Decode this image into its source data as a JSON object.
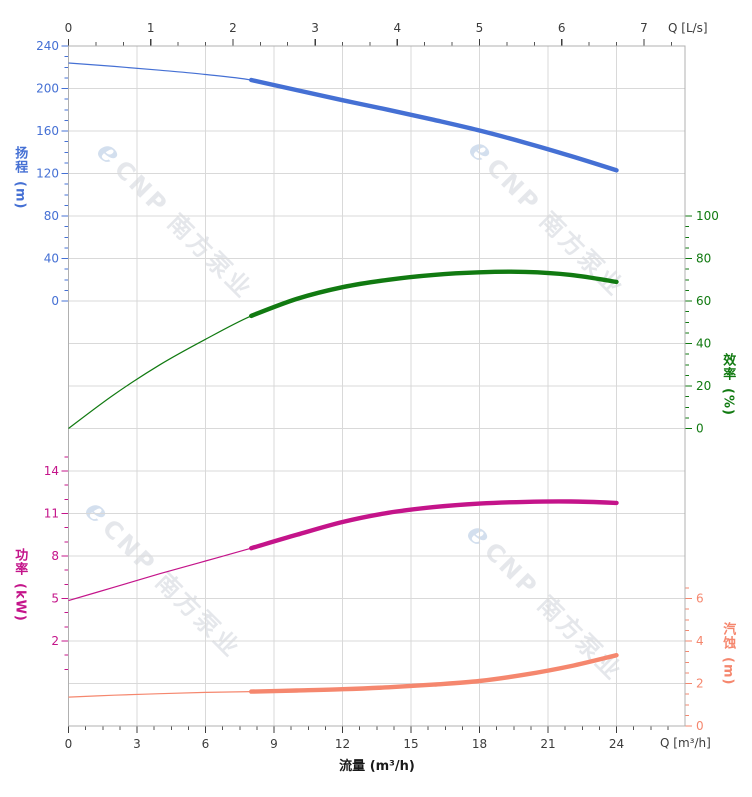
{
  "watermark": {
    "logo_glyph": "e",
    "brand": "CNP 南方泵业"
  },
  "chart_data": {
    "type": "line",
    "x_bottom": {
      "label": "流量 (m³/h)",
      "unit_label": "Q [m³/h]",
      "min": 0,
      "max": 27,
      "major_ticks": [
        0,
        3,
        6,
        9,
        12,
        15,
        18,
        21,
        24
      ],
      "minor_step": 0.75
    },
    "x_top": {
      "unit_label": "Q [L/s]",
      "min": 0,
      "max": 7.5,
      "major_ticks": [
        0,
        1,
        2,
        3,
        4,
        5,
        6,
        7
      ],
      "minor_step": 0.333333,
      "m3h_per_unit": 3.6
    },
    "y_axes": [
      {
        "id": "head",
        "label": "扬程",
        "unit": "(m)",
        "side": "left",
        "color": "#4570d4",
        "major_ticks": [
          240,
          200,
          160,
          120,
          80,
          40,
          0
        ],
        "minor_step": 10,
        "min": 0,
        "max": 240
      },
      {
        "id": "efficiency",
        "label": "效率",
        "unit": "(%)",
        "side": "right",
        "color": "#117a11",
        "major_ticks": [
          100,
          80,
          60,
          40,
          20,
          0
        ],
        "minor_step": 5,
        "min": 0,
        "max": 100
      },
      {
        "id": "power",
        "label": "功率",
        "unit": "(kW)",
        "side": "left",
        "color": "#c4148a",
        "major_ticks": [
          14,
          11,
          8,
          5,
          2
        ],
        "minor_step": 1,
        "min": 0,
        "max": 15
      },
      {
        "id": "npsh",
        "label": "汽蚀",
        "unit": "(m)",
        "side": "right",
        "color": "#f5876e",
        "major_ticks": [
          6,
          4,
          2,
          0
        ],
        "minor_step": 0.5,
        "min": 0,
        "max": 6.5
      }
    ],
    "series": [
      {
        "name": "head-curve",
        "axis": "head",
        "color": "#4570d4",
        "rated_range": [
          8,
          24
        ],
        "points": [
          [
            0,
            224
          ],
          [
            2,
            220.8
          ],
          [
            4,
            217.2
          ],
          [
            6,
            213.2
          ],
          [
            8,
            208
          ],
          [
            10,
            198.5
          ],
          [
            12,
            189
          ],
          [
            14,
            180
          ],
          [
            16,
            170.5
          ],
          [
            18,
            160.5
          ],
          [
            20,
            149
          ],
          [
            22,
            136.5
          ],
          [
            24,
            123
          ]
        ]
      },
      {
        "name": "efficiency-curve",
        "axis": "efficiency",
        "color": "#117a11",
        "rated_range": [
          8,
          24
        ],
        "points": [
          [
            0,
            0
          ],
          [
            2,
            16
          ],
          [
            4,
            30
          ],
          [
            6,
            42
          ],
          [
            8,
            53
          ],
          [
            10,
            61
          ],
          [
            12,
            66.5
          ],
          [
            14,
            70
          ],
          [
            16,
            72.3
          ],
          [
            18,
            73.5
          ],
          [
            20,
            73.7
          ],
          [
            22,
            72.3
          ],
          [
            24,
            69
          ]
        ]
      },
      {
        "name": "power-curve",
        "axis": "power",
        "color": "#c4148a",
        "rated_range": [
          8,
          24
        ],
        "points": [
          [
            0,
            4.85
          ],
          [
            2,
            5.8
          ],
          [
            4,
            6.75
          ],
          [
            6,
            7.65
          ],
          [
            8,
            8.55
          ],
          [
            10,
            9.5
          ],
          [
            12,
            10.4
          ],
          [
            14,
            11.05
          ],
          [
            16,
            11.45
          ],
          [
            18,
            11.7
          ],
          [
            20,
            11.82
          ],
          [
            22,
            11.85
          ],
          [
            24,
            11.75
          ]
        ]
      },
      {
        "name": "npsh-curve",
        "axis": "npsh",
        "color": "#f5876e",
        "rated_range": [
          8,
          24
        ],
        "points": [
          [
            0,
            1.36
          ],
          [
            2,
            1.45
          ],
          [
            4,
            1.52
          ],
          [
            6,
            1.58
          ],
          [
            8,
            1.62
          ],
          [
            10,
            1.67
          ],
          [
            12,
            1.73
          ],
          [
            14,
            1.82
          ],
          [
            16,
            1.95
          ],
          [
            18,
            2.12
          ],
          [
            20,
            2.42
          ],
          [
            22,
            2.82
          ],
          [
            24,
            3.33
          ]
        ]
      }
    ],
    "grid": true,
    "legend": "none"
  }
}
